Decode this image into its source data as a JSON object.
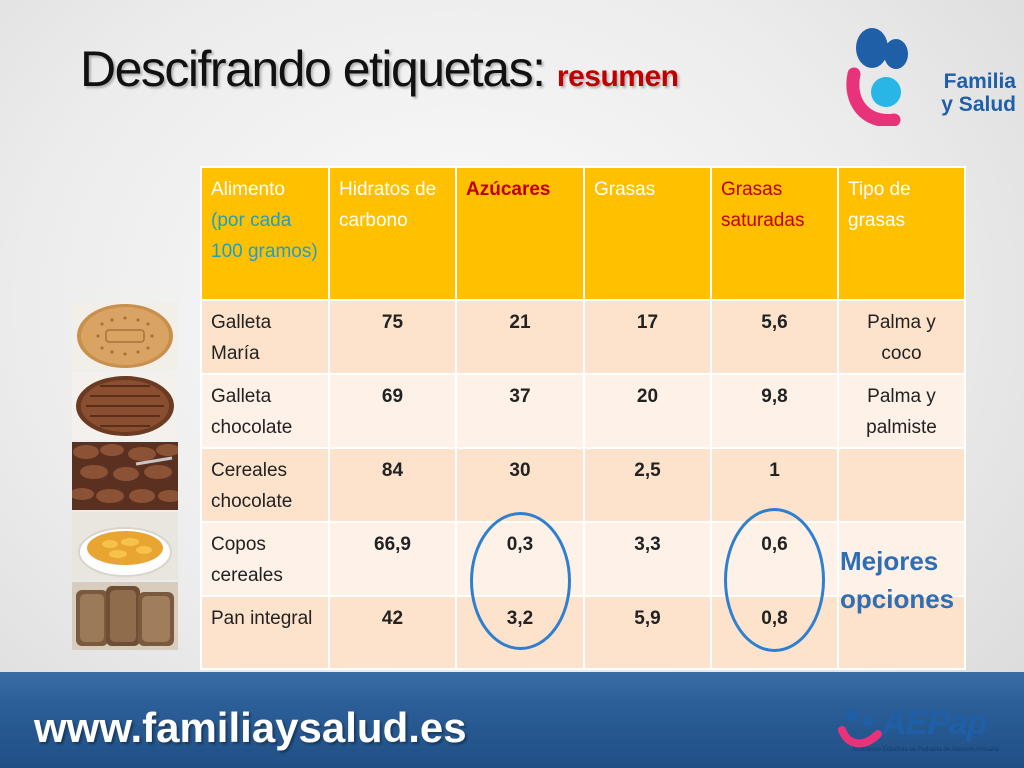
{
  "slide": {
    "title": "Descifrando etiquetas:",
    "subtitle": "resumen"
  },
  "logo_top": {
    "line1": "Familia",
    "line2": "y Salud",
    "colors": {
      "blue": "#1f5fa8",
      "pink": "#e8337a",
      "cyan": "#27b6e6"
    }
  },
  "table": {
    "headers": {
      "food_line1": "Alimento",
      "food_line2": "(por cada 100 gramos)",
      "carbs": "Hidratos de carbono",
      "sugars": "Azúcares",
      "fats": "Grasas",
      "sat_fats": "Grasas saturadas",
      "fat_type": "Tipo de grasas"
    },
    "rows": [
      {
        "food": "Galleta María",
        "carbs": "75",
        "sugars": "21",
        "fats": "17",
        "sat": "5,6",
        "type": "Palma y coco"
      },
      {
        "food": "Galleta chocolate",
        "carbs": "69",
        "sugars": "37",
        "fats": "20",
        "sat": "9,8",
        "type": "Palma y palmiste"
      },
      {
        "food": "Cereales chocolate",
        "carbs": "84",
        "sugars": "30",
        "fats": "2,5",
        "sat": "1",
        "type": ""
      },
      {
        "food": "Copos cereales",
        "carbs": "66,9",
        "sugars": "0,3",
        "fats": "3,3",
        "sat": "0,6",
        "type": ""
      },
      {
        "food": "Pan integral",
        "carbs": "42",
        "sugars": "3,2",
        "fats": "5,9",
        "sat": "0,8",
        "type": ""
      }
    ]
  },
  "best_options": {
    "line1": "Mejores",
    "line2": "opciones"
  },
  "thumbnails": [
    "maria-cookie-image",
    "chocolate-cookie-image",
    "chocolate-cereal-image",
    "corn-flakes-bowl-image",
    "whole-wheat-bread-image"
  ],
  "footer": {
    "url": "www.familiaysalud.es",
    "aepap_name": "AEPap",
    "aepap_tagline": "Asociación Española de Pediatría de Atención Primaria"
  },
  "colors": {
    "header_bg": "#ffc000",
    "row_dark": "#fde3cc",
    "row_light": "#fef1e7",
    "red": "#c00000",
    "blue": "#2f6eb5",
    "footer": "#2b5e97"
  }
}
